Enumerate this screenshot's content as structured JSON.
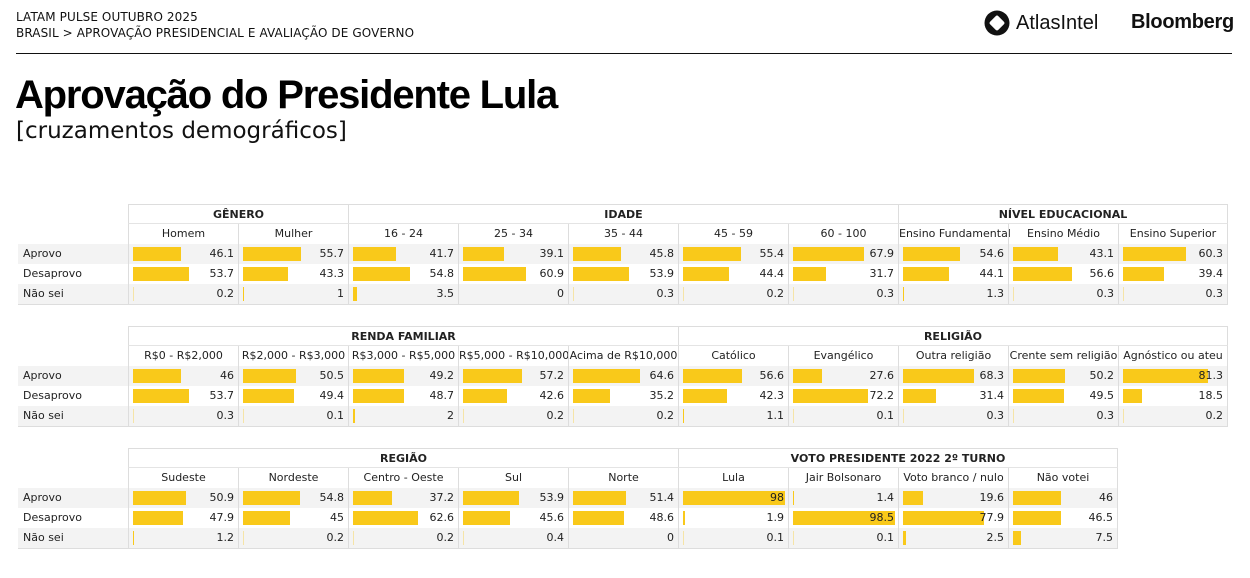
{
  "header": {
    "survey": "LATAM PULSE OUTUBRO 2025",
    "breadcrumb": "BRASIL > APROVAÇÃO PRESIDENCIAL E AVALIAÇÃO DE GOVERNO",
    "logo_atlas": "AtlasIntel",
    "logo_bloomberg": "Bloomberg"
  },
  "title": "Aprovação do Presidente Lula",
  "subtitle": "[cruzamentos demográficos]",
  "colors": {
    "bar": "#f9c91a",
    "row_alt": "#f3f3f3"
  },
  "chart_data": {
    "type": "table",
    "row_labels": [
      "Aprovo",
      "Desaprovo",
      "Não sei"
    ],
    "scale_max": 100,
    "blocks": [
      {
        "groups": [
          {
            "name": "GÊNERO",
            "columns": [
              {
                "name": "Homem",
                "values": [
                  "46.1",
                  "53.7",
                  "0.2"
                ]
              },
              {
                "name": "Mulher",
                "values": [
                  "55.7",
                  "43.3",
                  "1"
                ]
              }
            ]
          },
          {
            "name": "IDADE",
            "columns": [
              {
                "name": "16 - 24",
                "values": [
                  "41.7",
                  "54.8",
                  "3.5"
                ]
              },
              {
                "name": "25 - 34",
                "values": [
                  "39.1",
                  "60.9",
                  "0"
                ]
              },
              {
                "name": "35 - 44",
                "values": [
                  "45.8",
                  "53.9",
                  "0.3"
                ]
              },
              {
                "name": "45 - 59",
                "values": [
                  "55.4",
                  "44.4",
                  "0.2"
                ]
              },
              {
                "name": "60 - 100",
                "values": [
                  "67.9",
                  "31.7",
                  "0.3"
                ]
              }
            ]
          },
          {
            "name": "NÍVEL EDUCACIONAL",
            "columns": [
              {
                "name": "Ensino Fundamental",
                "values": [
                  "54.6",
                  "44.1",
                  "1.3"
                ]
              },
              {
                "name": "Ensino Médio",
                "values": [
                  "43.1",
                  "56.6",
                  "0.3"
                ]
              },
              {
                "name": "Ensino Superior",
                "values": [
                  "60.3",
                  "39.4",
                  "0.3"
                ]
              }
            ]
          }
        ]
      },
      {
        "groups": [
          {
            "name": "RENDA FAMILIAR",
            "columns": [
              {
                "name": "R$0 - R$2,000",
                "values": [
                  "46",
                  "53.7",
                  "0.3"
                ]
              },
              {
                "name": "R$2,000 - R$3,000",
                "values": [
                  "50.5",
                  "49.4",
                  "0.1"
                ]
              },
              {
                "name": "R$3,000 - R$5,000",
                "values": [
                  "49.2",
                  "48.7",
                  "2"
                ]
              },
              {
                "name": "R$5,000 - R$10,000",
                "values": [
                  "57.2",
                  "42.6",
                  "0.2"
                ]
              },
              {
                "name": "Acima de R$10,000",
                "values": [
                  "64.6",
                  "35.2",
                  "0.2"
                ]
              }
            ]
          },
          {
            "name": "RELIGIÃO",
            "columns": [
              {
                "name": "Católico",
                "values": [
                  "56.6",
                  "42.3",
                  "1.1"
                ]
              },
              {
                "name": "Evangélico",
                "values": [
                  "27.6",
                  "72.2",
                  "0.1"
                ]
              },
              {
                "name": "Outra religião",
                "values": [
                  "68.3",
                  "31.4",
                  "0.3"
                ]
              },
              {
                "name": "Crente sem religião",
                "values": [
                  "50.2",
                  "49.5",
                  "0.3"
                ]
              },
              {
                "name": "Agnóstico ou ateu",
                "values": [
                  "81.3",
                  "18.5",
                  "0.2"
                ]
              }
            ]
          }
        ]
      },
      {
        "groups": [
          {
            "name": "REGIÃO",
            "columns": [
              {
                "name": "Sudeste",
                "values": [
                  "50.9",
                  "47.9",
                  "1.2"
                ]
              },
              {
                "name": "Nordeste",
                "values": [
                  "54.8",
                  "45",
                  "0.2"
                ]
              },
              {
                "name": "Centro - Oeste",
                "values": [
                  "37.2",
                  "62.6",
                  "0.2"
                ]
              },
              {
                "name": "Sul",
                "values": [
                  "53.9",
                  "45.6",
                  "0.4"
                ]
              },
              {
                "name": "Norte",
                "values": [
                  "51.4",
                  "48.6",
                  "0"
                ]
              }
            ]
          },
          {
            "name": "VOTO PRESIDENTE 2022 2º TURNO",
            "columns": [
              {
                "name": "Lula",
                "values": [
                  "98",
                  "1.9",
                  "0.1"
                ]
              },
              {
                "name": "Jair Bolsonaro",
                "values": [
                  "1.4",
                  "98.5",
                  "0.1"
                ]
              },
              {
                "name": "Voto branco / nulo",
                "values": [
                  "19.6",
                  "77.9",
                  "2.5"
                ]
              },
              {
                "name": "Não votei",
                "values": [
                  "46",
                  "46.5",
                  "7.5"
                ]
              }
            ]
          }
        ]
      }
    ]
  }
}
